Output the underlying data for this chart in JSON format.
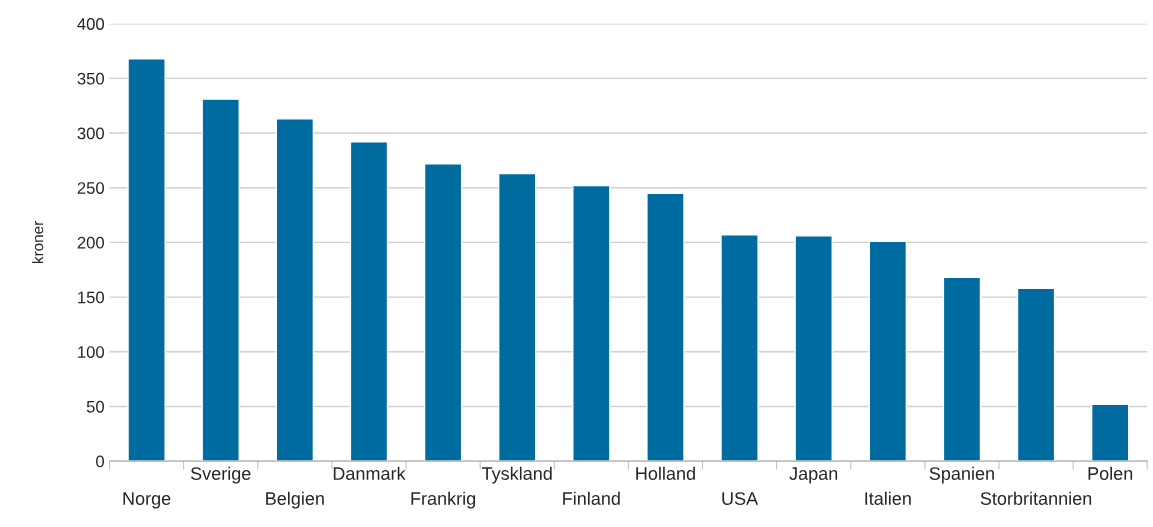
{
  "chart_data": {
    "type": "bar",
    "ylabel": "kroner",
    "categories": [
      "Norge",
      "Sverige",
      "Belgien",
      "Danmark",
      "Frankrig",
      "Tyskland",
      "Finland",
      "Holland",
      "USA",
      "Japan",
      "Italien",
      "Spanien",
      "Storbritannien",
      "Polen"
    ],
    "values": [
      368,
      331,
      313,
      292,
      272,
      263,
      252,
      245,
      207,
      206,
      201,
      168,
      158,
      52
    ],
    "color": "#006b9f",
    "ylim": [
      0,
      400
    ],
    "yticks": [
      0,
      50,
      100,
      150,
      200,
      250,
      300,
      350,
      400
    ],
    "grid": "y"
  }
}
